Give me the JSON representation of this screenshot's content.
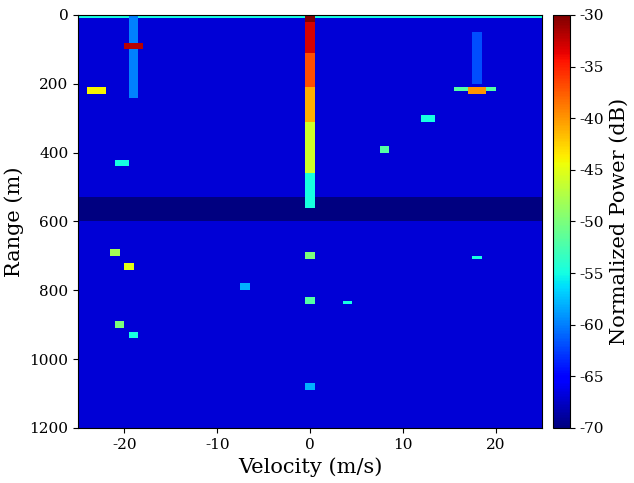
{
  "chart_data": {
    "type": "heatmap",
    "xlabel": "Velocity (m/s)",
    "ylabel": "Range (m)",
    "xlim": [
      -25,
      25
    ],
    "ylim": [
      1200,
      0
    ],
    "xticks": [
      -20,
      -10,
      0,
      10,
      20
    ],
    "yticks": [
      0,
      200,
      400,
      600,
      800,
      1000,
      1200
    ],
    "velocity_step": 0.5,
    "range_step": 10,
    "background": -67,
    "cells": [
      [
        -25,
        25,
        0,
        10,
        -55
      ],
      [
        -25,
        25,
        530,
        600,
        -70
      ],
      [
        -0.5,
        0.5,
        0,
        20,
        -30
      ],
      [
        -0.5,
        0.5,
        20,
        110,
        -33
      ],
      [
        -0.5,
        0.5,
        110,
        210,
        -37
      ],
      [
        -0.5,
        0.5,
        210,
        310,
        -41
      ],
      [
        -0.5,
        0.5,
        310,
        460,
        -46
      ],
      [
        -0.5,
        0.5,
        460,
        560,
        -55
      ],
      [
        -0.5,
        0.5,
        690,
        710,
        -50
      ],
      [
        -0.5,
        0.5,
        820,
        840,
        -52
      ],
      [
        -0.5,
        0.5,
        1070,
        1090,
        -58
      ],
      [
        -19.5,
        -18.5,
        0,
        240,
        -60
      ],
      [
        -20,
        -18,
        80,
        100,
        -32
      ],
      [
        -24,
        -22,
        210,
        230,
        -44
      ],
      [
        17.5,
        18.5,
        50,
        200,
        -62
      ],
      [
        15.5,
        20,
        215,
        225,
        -52
      ],
      [
        17,
        19,
        210,
        230,
        -40
      ],
      [
        -21,
        -19.5,
        420,
        440,
        -55
      ],
      [
        -21.5,
        -20.5,
        680,
        700,
        -48
      ],
      [
        -20,
        -19,
        720,
        740,
        -45
      ],
      [
        -21,
        -20,
        890,
        910,
        -50
      ],
      [
        -19.5,
        -18.5,
        920,
        940,
        -55
      ],
      [
        12,
        13.5,
        290,
        310,
        -55
      ],
      [
        7.5,
        8.5,
        380,
        400,
        -52
      ],
      [
        3.5,
        4.5,
        830,
        840,
        -55
      ],
      [
        -7.5,
        -6.5,
        780,
        800,
        -58
      ],
      [
        17.5,
        18.5,
        700,
        710,
        -55
      ]
    ],
    "colorbar_label": "Normalized Power (dB)",
    "colorbar_lim": [
      -70,
      -30
    ],
    "colorbar_ticks": [
      -70,
      -65,
      -60,
      -55,
      -50,
      -45,
      -40,
      -35,
      -30
    ]
  }
}
